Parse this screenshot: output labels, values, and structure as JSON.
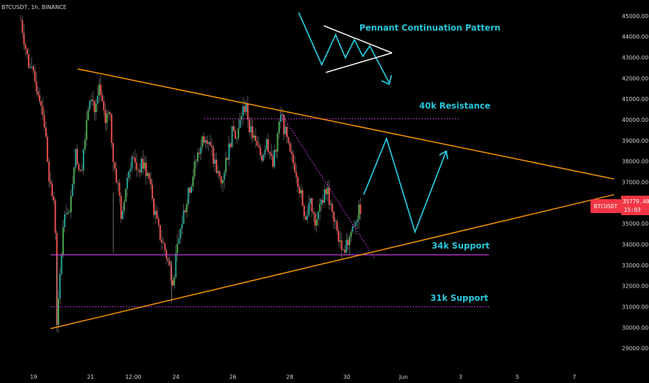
{
  "header": {
    "symbol_text": "BTCUSDT, 1h, BINANCE"
  },
  "colors": {
    "background": "#000000",
    "bull": "#26a69a",
    "bull_bright": "#4caf50",
    "bear": "#ef5350",
    "trendline": "#ff9800",
    "support": "#e040fb",
    "annotation": "#26c6da",
    "price_tag": "#f23645",
    "axis_text": "#d1d4dc"
  },
  "price_tag": {
    "symbol": "BTCUSDT",
    "price": "35779.40",
    "countdown": "15:03"
  },
  "chart_data": {
    "type": "candlestick",
    "symbol": "BTCUSDT",
    "interval": "1h",
    "exchange": "BINANCE",
    "y_axis": {
      "range": [
        28000,
        45500
      ],
      "ticks": [
        "45000.00",
        "44000.00",
        "43000.00",
        "42000.00",
        "41000.00",
        "40000.00",
        "39000.00",
        "38000.00",
        "37000.00",
        "36000.00",
        "35000.00",
        "34000.00",
        "33000.00",
        "32000.00",
        "31000.00",
        "30000.00",
        "29000.00"
      ]
    },
    "x_axis": {
      "unit": "days since May 19",
      "range": [
        -0.4,
        20.4
      ],
      "ticks": [
        {
          "label": "19",
          "at": 0
        },
        {
          "label": "21",
          "at": 2
        },
        {
          "label": "12:00",
          "at": 3.5
        },
        {
          "label": "24",
          "at": 5
        },
        {
          "label": "26",
          "at": 7
        },
        {
          "label": "28",
          "at": 9
        },
        {
          "label": "30",
          "at": 11
        },
        {
          "label": "Jun",
          "at": 13
        },
        {
          "label": "3",
          "at": 15
        },
        {
          "label": "5",
          "at": 17
        },
        {
          "label": "7",
          "at": 19
        }
      ]
    },
    "path_points": [
      [
        -0.45,
        44800
      ],
      [
        -0.2,
        42800
      ],
      [
        0.0,
        42000
      ],
      [
        0.2,
        41200
      ],
      [
        0.35,
        40200
      ],
      [
        0.55,
        37200
      ],
      [
        0.75,
        35500
      ],
      [
        0.82,
        30000
      ],
      [
        0.95,
        33000
      ],
      [
        1.1,
        36000
      ],
      [
        1.25,
        35200
      ],
      [
        1.45,
        38500
      ],
      [
        1.65,
        37300
      ],
      [
        1.85,
        40000
      ],
      [
        2.0,
        41500
      ],
      [
        2.15,
        40300
      ],
      [
        2.3,
        41700
      ],
      [
        2.5,
        39800
      ],
      [
        2.65,
        40800
      ],
      [
        2.8,
        38000
      ],
      [
        3.0,
        36500
      ],
      [
        3.1,
        35000
      ],
      [
        3.25,
        37000
      ],
      [
        3.45,
        38200
      ],
      [
        3.65,
        37600
      ],
      [
        3.85,
        37900
      ],
      [
        4.05,
        37200
      ],
      [
        4.25,
        35500
      ],
      [
        4.4,
        34600
      ],
      [
        4.6,
        33800
      ],
      [
        4.75,
        33000
      ],
      [
        4.9,
        32300
      ],
      [
        5.05,
        33800
      ],
      [
        5.25,
        35400
      ],
      [
        5.45,
        36500
      ],
      [
        5.65,
        37700
      ],
      [
        5.85,
        38800
      ],
      [
        6.05,
        39400
      ],
      [
        6.25,
        38400
      ],
      [
        6.45,
        37400
      ],
      [
        6.6,
        37000
      ],
      [
        6.8,
        38300
      ],
      [
        7.0,
        39500
      ],
      [
        7.15,
        39100
      ],
      [
        7.3,
        40300
      ],
      [
        7.45,
        40700
      ],
      [
        7.6,
        39600
      ],
      [
        7.8,
        38800
      ],
      [
        8.0,
        38200
      ],
      [
        8.2,
        39000
      ],
      [
        8.4,
        37700
      ],
      [
        8.55,
        39100
      ],
      [
        8.7,
        40200
      ],
      [
        8.85,
        39300
      ],
      [
        9.0,
        38300
      ],
      [
        9.2,
        37700
      ],
      [
        9.4,
        36300
      ],
      [
        9.55,
        35300
      ],
      [
        9.7,
        36000
      ],
      [
        9.9,
        35100
      ],
      [
        10.1,
        35800
      ],
      [
        10.3,
        36800
      ],
      [
        10.5,
        35300
      ],
      [
        10.7,
        34400
      ],
      [
        10.85,
        34000
      ],
      [
        11.0,
        33900
      ],
      [
        11.15,
        34600
      ],
      [
        11.3,
        35200
      ],
      [
        11.5,
        35780
      ]
    ],
    "trendlines": [
      {
        "name": "upper",
        "from": [
          1.55,
          42450
        ],
        "to": [
          20.4,
          37150
        ]
      },
      {
        "name": "lower",
        "from": [
          0.6,
          29950
        ],
        "to": [
          20.4,
          36400
        ]
      }
    ],
    "horizontal_levels": [
      {
        "label": "40k Resistance",
        "value": 40050,
        "from": 6,
        "to": 15,
        "style": "dotted"
      },
      {
        "label": "34k Support",
        "value": 33500,
        "from": 0.6,
        "to": 16,
        "style": "solid"
      },
      {
        "label": "31k Support",
        "value": 31000,
        "from": 0.6,
        "to": 16,
        "style": "dotted"
      }
    ],
    "projection": {
      "points": [
        [
          11.6,
          36400
        ],
        [
          12.4,
          39100
        ],
        [
          13.4,
          34600
        ],
        [
          14.5,
          38500
        ]
      ]
    },
    "pennant_illustration": {
      "label": "Pennant Continuation Pattern"
    },
    "annotations": [
      "Pennant Continuation Pattern",
      "40k Resistance",
      "34k Support",
      "31k Support"
    ],
    "last_price": 35779.4
  }
}
